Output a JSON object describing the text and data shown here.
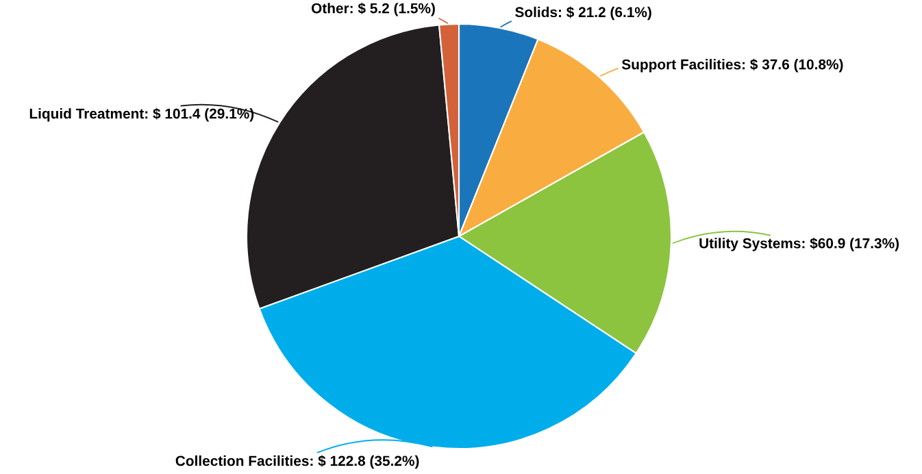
{
  "chart_data": {
    "type": "pie",
    "categories": [
      "Solids",
      "Support Facilities",
      "Utility Systems",
      "Collection Facilities",
      "Liquid Treatment",
      "Other"
    ],
    "values": [
      21.2,
      37.6,
      60.9,
      122.8,
      101.4,
      5.2
    ],
    "value_labels": [
      "$ 21.2 (6.1%)",
      "$ 37.6 (10.8%)",
      "$60.9 (17.3%)",
      "$ 122.8 (35.2%)",
      "$ 101.4 (29.1%)",
      "$ 5.2 (1.5%)"
    ],
    "colors": [
      "#1b75bb",
      "#f9ad40",
      "#8cc43f",
      "#00adeb",
      "#231f20",
      "#d3623a"
    ]
  }
}
